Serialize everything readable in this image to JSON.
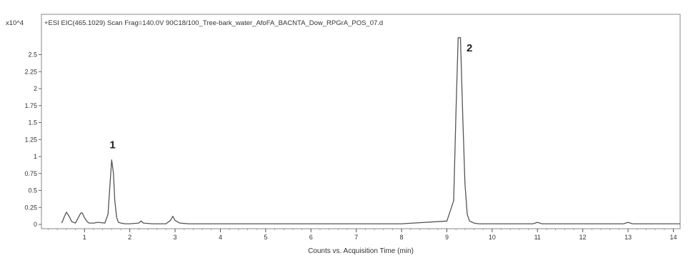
{
  "chart_data": {
    "type": "line",
    "title": "+ESI EIC(465.1029) Scan Frag=140.0V 90C18/100_Tree-bark_water_AfoFA_BACNTA_Dow_RPGrA_POS_07.d",
    "y_multiplier": "x10^4",
    "xlabel": "Counts vs. Acquisition Time (min)",
    "ylabel": "",
    "xlim": [
      0.05,
      14.15
    ],
    "ylim": [
      0,
      2.8
    ],
    "x_ticks": [
      1,
      2,
      3,
      4,
      5,
      6,
      7,
      8,
      9,
      10,
      11,
      12,
      13,
      14
    ],
    "y_ticks": [
      0,
      0.25,
      0.5,
      0.75,
      1,
      1.25,
      1.5,
      1.75,
      2,
      2.25,
      2.5
    ],
    "y_tick_labels": [
      "0",
      "0.25",
      "0.5",
      "0.75",
      "1",
      "1.25",
      "1.5",
      "1.75",
      "2",
      "2.25",
      "2.5"
    ],
    "grid": false,
    "series": [
      {
        "x": [
          0.5,
          0.56,
          0.6,
          0.66,
          0.72,
          0.8,
          0.88,
          0.92,
          0.95,
          1.0,
          1.06,
          1.1,
          1.2,
          1.3,
          1.45,
          1.52,
          1.56,
          1.6,
          1.64,
          1.67,
          1.71,
          1.75,
          1.8,
          1.9,
          2.0,
          2.2,
          2.25,
          2.3,
          2.5,
          2.8,
          2.9,
          2.95,
          3.0,
          3.1,
          3.3,
          4.0,
          5.0,
          6.0,
          7.0,
          8.0,
          9.0,
          9.15,
          9.2,
          9.25,
          9.3,
          9.35,
          9.4,
          9.45,
          9.5,
          9.6,
          9.7,
          10.0,
          10.5,
          10.9,
          11.0,
          11.1,
          11.5,
          12.0,
          12.5,
          12.9,
          13.0,
          13.1,
          13.5,
          14.0,
          14.15
        ],
        "y": [
          0.02,
          0.12,
          0.18,
          0.12,
          0.04,
          0.02,
          0.12,
          0.17,
          0.17,
          0.1,
          0.04,
          0.02,
          0.02,
          0.03,
          0.02,
          0.15,
          0.55,
          0.95,
          0.75,
          0.35,
          0.1,
          0.03,
          0.02,
          0.01,
          0.01,
          0.02,
          0.05,
          0.02,
          0.01,
          0.01,
          0.06,
          0.12,
          0.06,
          0.02,
          0.01,
          0.01,
          0.01,
          0.01,
          0.01,
          0.01,
          0.05,
          0.35,
          1.6,
          2.75,
          2.75,
          1.6,
          0.6,
          0.15,
          0.05,
          0.02,
          0.01,
          0.01,
          0.01,
          0.01,
          0.03,
          0.01,
          0.01,
          0.01,
          0.01,
          0.01,
          0.03,
          0.01,
          0.01,
          0.01,
          0.01
        ]
      }
    ],
    "annotations": [
      {
        "text": "1",
        "x": 1.62,
        "y": 1.12
      },
      {
        "text": "2",
        "x": 9.5,
        "y": 2.55
      }
    ]
  }
}
